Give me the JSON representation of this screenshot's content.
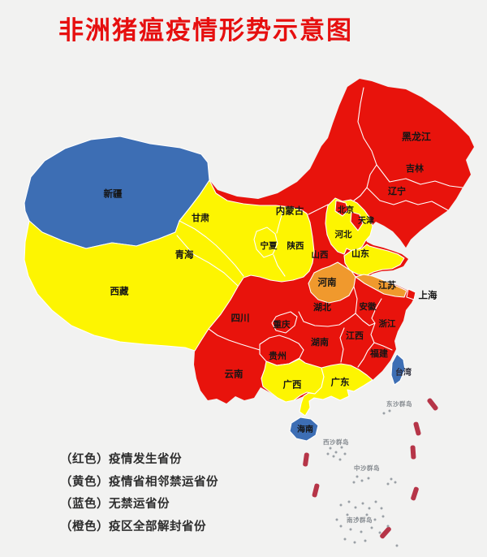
{
  "title": "非洲猪瘟疫情形势示意图",
  "legend": {
    "items": [
      {
        "id": "red",
        "color_name": "红色",
        "color_hex": "#e8130c",
        "label": "（红色）疫情发生省份"
      },
      {
        "id": "yellow",
        "color_name": "黄色",
        "color_hex": "#fdf501",
        "label": "（黄色）疫情省相邻禁运省份"
      },
      {
        "id": "blue",
        "color_name": "蓝色",
        "color_hex": "#3d6eb4",
        "label": "（蓝色）无禁运省份"
      },
      {
        "id": "orange",
        "color_name": "橙色",
        "color_hex": "#f0992d",
        "label": "（橙色）疫区全部解封省份"
      }
    ]
  },
  "map": {
    "status_colors": {
      "red": "#e8130c",
      "yellow": "#fdf501",
      "blue": "#3d6eb4",
      "orange": "#f0992d"
    },
    "other_colors": {
      "province_border": "#ffffff",
      "nine_dash_line": "#b63548",
      "island_dot": "#9aa0a6",
      "island_label_text": "#878c91",
      "province_label_text": "#151515"
    },
    "provinces": [
      {
        "id": "heilongjiang",
        "name": "黑龙江",
        "status": "red"
      },
      {
        "id": "jilin",
        "name": "吉林",
        "status": "red"
      },
      {
        "id": "liaoning",
        "name": "辽宁",
        "status": "red"
      },
      {
        "id": "neimenggu",
        "name": "内蒙古",
        "status": "red"
      },
      {
        "id": "beijing",
        "name": "北京",
        "status": "red"
      },
      {
        "id": "tianjin",
        "name": "天津",
        "status": "red"
      },
      {
        "id": "hebei",
        "name": "河北",
        "status": "yellow"
      },
      {
        "id": "shandong",
        "name": "山东",
        "status": "yellow"
      },
      {
        "id": "shanxi",
        "name": "山西",
        "status": "red"
      },
      {
        "id": "shaanxi",
        "name": "陕西",
        "status": "yellow"
      },
      {
        "id": "ningxia",
        "name": "宁夏",
        "status": "yellow"
      },
      {
        "id": "gansu",
        "name": "甘肃",
        "status": "yellow"
      },
      {
        "id": "qinghai",
        "name": "青海",
        "status": "yellow"
      },
      {
        "id": "xinjiang",
        "name": "新疆",
        "status": "blue"
      },
      {
        "id": "xizang",
        "name": "西藏",
        "status": "yellow"
      },
      {
        "id": "henan",
        "name": "河南",
        "status": "orange"
      },
      {
        "id": "jiangsu",
        "name": "江苏",
        "status": "orange"
      },
      {
        "id": "shanghai",
        "name": "上海",
        "status": "red"
      },
      {
        "id": "anhui",
        "name": "安徽",
        "status": "red"
      },
      {
        "id": "hubei",
        "name": "湖北",
        "status": "red"
      },
      {
        "id": "sichuan",
        "name": "四川",
        "status": "red"
      },
      {
        "id": "chongqing",
        "name": "重庆",
        "status": "red"
      },
      {
        "id": "zhejiang",
        "name": "浙江",
        "status": "red"
      },
      {
        "id": "jiangxi",
        "name": "江西",
        "status": "red"
      },
      {
        "id": "hunan",
        "name": "湖南",
        "status": "red"
      },
      {
        "id": "guizhou",
        "name": "贵州",
        "status": "red"
      },
      {
        "id": "fujian",
        "name": "福建",
        "status": "red"
      },
      {
        "id": "yunnan",
        "name": "云南",
        "status": "red"
      },
      {
        "id": "guangxi",
        "name": "广西",
        "status": "yellow"
      },
      {
        "id": "guangdong",
        "name": "广东",
        "status": "yellow"
      },
      {
        "id": "hainan",
        "name": "海南",
        "status": "blue"
      },
      {
        "id": "taiwan",
        "name": "台湾",
        "status": "blue"
      }
    ],
    "island_groups": [
      {
        "id": "dongsha",
        "name": "东沙群岛"
      },
      {
        "id": "xisha",
        "name": "西沙群岛"
      },
      {
        "id": "zhongsha",
        "name": "中沙群岛"
      },
      {
        "id": "nansha",
        "name": "南沙群岛"
      }
    ]
  }
}
